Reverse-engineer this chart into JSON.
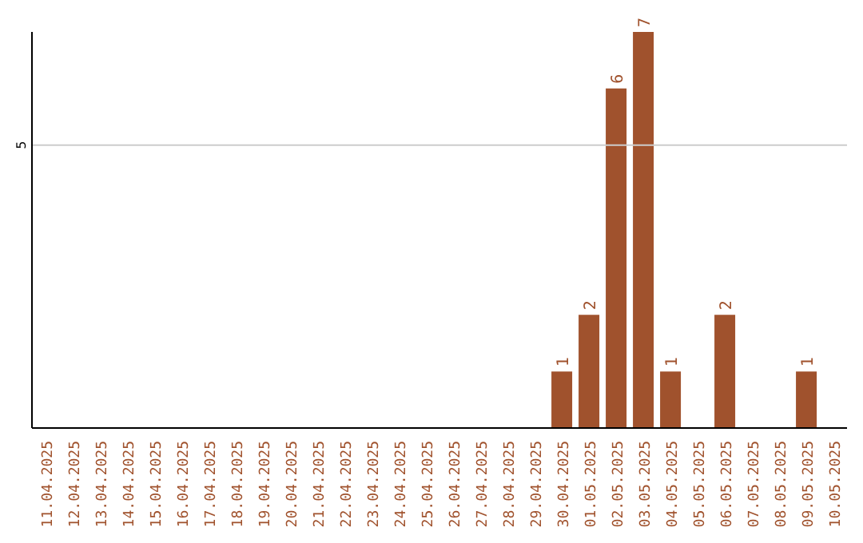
{
  "chart_data": {
    "type": "bar",
    "categories": [
      "11.04.2025",
      "12.04.2025",
      "13.04.2025",
      "14.04.2025",
      "15.04.2025",
      "16.04.2025",
      "17.04.2025",
      "18.04.2025",
      "19.04.2025",
      "20.04.2025",
      "21.04.2025",
      "22.04.2025",
      "23.04.2025",
      "24.04.2025",
      "25.04.2025",
      "26.04.2025",
      "27.04.2025",
      "28.04.2025",
      "29.04.2025",
      "30.04.2025",
      "01.05.2025",
      "02.05.2025",
      "03.05.2025",
      "04.05.2025",
      "05.05.2025",
      "06.05.2025",
      "07.05.2025",
      "08.05.2025",
      "09.05.2025",
      "10.05.2025"
    ],
    "values": [
      null,
      null,
      null,
      null,
      null,
      null,
      null,
      null,
      null,
      null,
      null,
      null,
      null,
      null,
      null,
      null,
      null,
      null,
      null,
      1,
      2,
      6,
      7,
      1,
      null,
      2,
      null,
      null,
      1,
      null
    ],
    "data_labels": true,
    "color": "#a0522d",
    "ylim": [
      0,
      7
    ],
    "ref_lines": [
      {
        "axis": "y",
        "value": 5,
        "label": "5",
        "color": "#cccccc"
      }
    ]
  }
}
